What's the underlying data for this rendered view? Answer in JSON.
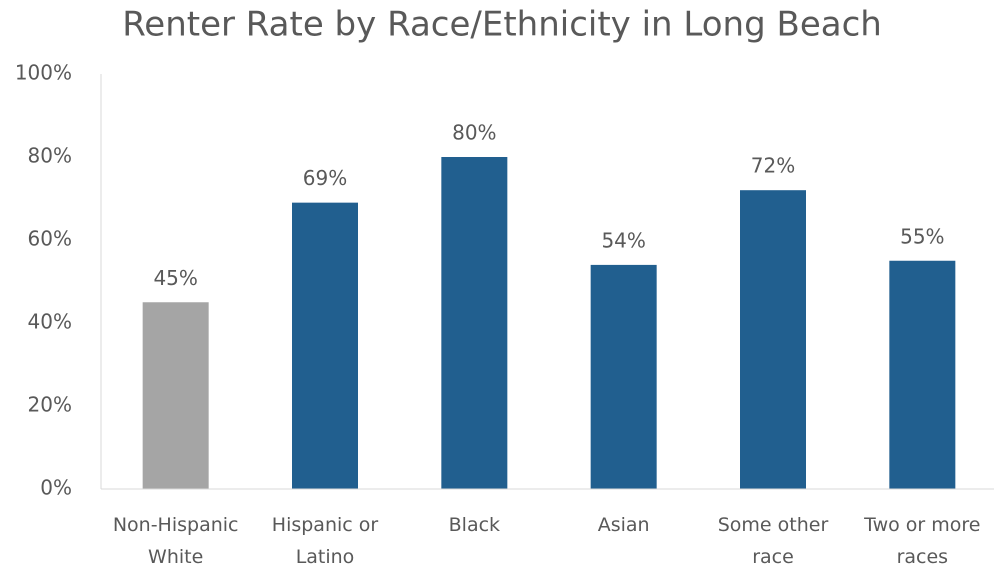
{
  "chart_data": {
    "type": "bar",
    "title": "Renter Rate by Race/Ethnicity in Long Beach",
    "categories": [
      "Non-Hispanic White",
      "Hispanic or Latino",
      "Black",
      "Asian",
      "Some other race",
      "Two or more races"
    ],
    "values": [
      45,
      69,
      80,
      54,
      72,
      55
    ],
    "value_labels": [
      "45%",
      "69%",
      "80%",
      "54%",
      "72%",
      "55%"
    ],
    "colors": [
      "#a5a5a5",
      "#215f8f",
      "#215f8f",
      "#215f8f",
      "#215f8f",
      "#215f8f"
    ],
    "ylim": [
      0,
      100
    ],
    "yticks": [
      {
        "value": 0,
        "label": "0%"
      },
      {
        "value": 20,
        "label": "20%"
      },
      {
        "value": 40,
        "label": "40%"
      },
      {
        "value": 60,
        "label": "60%"
      },
      {
        "value": 80,
        "label": "80%"
      },
      {
        "value": 100,
        "label": "100%"
      }
    ],
    "grid": false
  }
}
